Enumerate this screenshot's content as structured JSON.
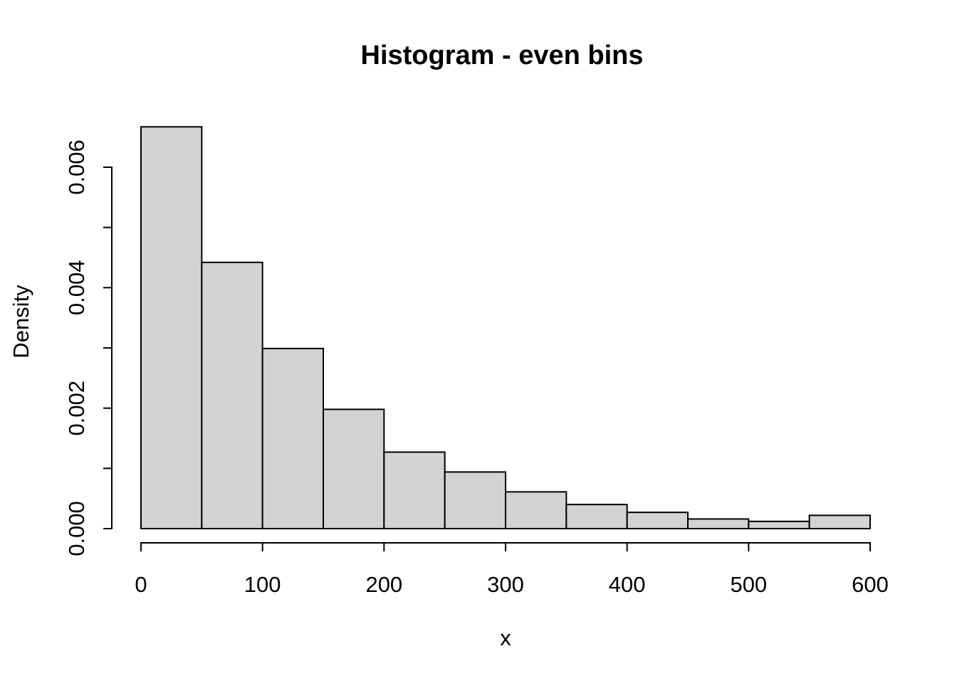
{
  "page": {
    "background": "#ffffff"
  },
  "chart_data": {
    "type": "bar",
    "subtype": "histogram",
    "title": "Histogram - even bins",
    "xlabel": "x",
    "ylabel": "Density",
    "bin_width": 50,
    "bin_edges": [
      0,
      50,
      100,
      150,
      200,
      250,
      300,
      350,
      400,
      450,
      500,
      550,
      600
    ],
    "values": [
      0.00667,
      0.00442,
      0.00299,
      0.00198,
      0.00127,
      0.00094,
      0.00061,
      0.0004,
      0.00027,
      0.00016,
      0.00012,
      0.00022
    ],
    "xlim": [
      0,
      600
    ],
    "ylim": [
      0,
      0.006
    ],
    "x_ticks": {
      "values": [
        0,
        100,
        200,
        300,
        400,
        500,
        600
      ],
      "labels": [
        "0",
        "100",
        "200",
        "300",
        "400",
        "500",
        "600"
      ]
    },
    "y_ticks": {
      "values": [
        0,
        0.001,
        0.002,
        0.003,
        0.004,
        0.005,
        0.006
      ],
      "labels": [
        "0.000",
        "",
        "0.002",
        "",
        "0.004",
        "",
        "0.006"
      ]
    },
    "grid": false,
    "legend": null,
    "colors": {
      "bar_fill": "#d3d3d3",
      "bar_border": "#000000",
      "axis": "#000000",
      "text": "#000000"
    }
  }
}
